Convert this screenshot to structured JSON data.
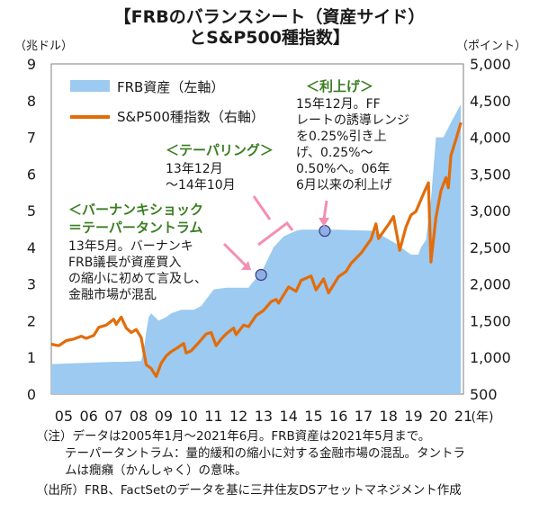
{
  "chart_data": {
    "type": "area+line",
    "title": "【FRBのバランスシート（資産サイド）",
    "subtitle": "とS&P500種指数】",
    "left_axis_unit": "（兆ドル）",
    "right_axis_unit": "（ポイント）",
    "x_axis_unit": "(年)",
    "left_axis_ticks": [
      "0",
      "1",
      "2",
      "3",
      "4",
      "5",
      "6",
      "7",
      "8",
      "9"
    ],
    "right_axis_ticks": [
      "500",
      "1,000",
      "1,500",
      "2,000",
      "2,500",
      "3,000",
      "3,500",
      "4,000",
      "4,500",
      "5,000"
    ],
    "x_tick_labels": [
      "05",
      "06",
      "07",
      "08",
      "09",
      "10",
      "11",
      "12",
      "13",
      "14",
      "15",
      "16",
      "17",
      "18",
      "19",
      "20",
      "21"
    ],
    "ylim_left": [
      0,
      9
    ],
    "ylim_right": [
      500,
      5000
    ],
    "x_range": [
      2005.0,
      2021.5
    ],
    "legend_placement": "top-left",
    "colors": {
      "frb_area": "#9ccaf0",
      "sp500_line": "#e36c0a",
      "annotation_green": "#3a7d22",
      "marker_pink": "#f48fb1"
    },
    "series": [
      {
        "name": "FRB資産（左軸）",
        "axis": "left",
        "kind": "area",
        "points": [
          [
            2005.0,
            0.82
          ],
          [
            2007.5,
            0.88
          ],
          [
            2007.9,
            0.88
          ],
          [
            2008.6,
            0.9
          ],
          [
            2008.7,
            1.2
          ],
          [
            2008.8,
            1.7
          ],
          [
            2008.9,
            2.1
          ],
          [
            2009.0,
            2.2
          ],
          [
            2009.3,
            2.0
          ],
          [
            2009.6,
            2.1
          ],
          [
            2009.8,
            2.2
          ],
          [
            2010.2,
            2.3
          ],
          [
            2010.7,
            2.3
          ],
          [
            2011.0,
            2.4
          ],
          [
            2011.5,
            2.85
          ],
          [
            2012.0,
            2.9
          ],
          [
            2012.9,
            2.9
          ],
          [
            2013.0,
            3.0
          ],
          [
            2013.4,
            3.3
          ],
          [
            2013.9,
            4.0
          ],
          [
            2014.3,
            4.3
          ],
          [
            2014.8,
            4.45
          ],
          [
            2015.0,
            4.48
          ],
          [
            2016.5,
            4.48
          ],
          [
            2017.9,
            4.45
          ],
          [
            2018.3,
            4.3
          ],
          [
            2018.8,
            4.1
          ],
          [
            2019.4,
            3.8
          ],
          [
            2019.7,
            3.8
          ],
          [
            2019.8,
            4.0
          ],
          [
            2020.0,
            4.2
          ],
          [
            2020.2,
            5.3
          ],
          [
            2020.4,
            7.0
          ],
          [
            2020.7,
            7.0
          ],
          [
            2021.0,
            7.4
          ],
          [
            2021.4,
            7.9
          ]
        ]
      },
      {
        "name": "S&P500種指数（右軸）",
        "axis": "right",
        "kind": "line",
        "points": [
          [
            2005.0,
            1180
          ],
          [
            2005.3,
            1160
          ],
          [
            2005.6,
            1230
          ],
          [
            2005.9,
            1250
          ],
          [
            2006.2,
            1290
          ],
          [
            2006.4,
            1260
          ],
          [
            2006.7,
            1300
          ],
          [
            2006.9,
            1410
          ],
          [
            2007.2,
            1440
          ],
          [
            2007.5,
            1520
          ],
          [
            2007.6,
            1450
          ],
          [
            2007.8,
            1550
          ],
          [
            2008.0,
            1400
          ],
          [
            2008.2,
            1340
          ],
          [
            2008.4,
            1380
          ],
          [
            2008.6,
            1270
          ],
          [
            2008.8,
            900
          ],
          [
            2009.0,
            850
          ],
          [
            2009.2,
            740
          ],
          [
            2009.4,
            920
          ],
          [
            2009.6,
            1020
          ],
          [
            2009.8,
            1080
          ],
          [
            2010.0,
            1120
          ],
          [
            2010.3,
            1190
          ],
          [
            2010.4,
            1060
          ],
          [
            2010.6,
            1090
          ],
          [
            2010.9,
            1200
          ],
          [
            2011.2,
            1320
          ],
          [
            2011.4,
            1340
          ],
          [
            2011.6,
            1160
          ],
          [
            2011.8,
            1250
          ],
          [
            2012.0,
            1320
          ],
          [
            2012.3,
            1400
          ],
          [
            2012.4,
            1310
          ],
          [
            2012.7,
            1440
          ],
          [
            2012.9,
            1420
          ],
          [
            2013.2,
            1570
          ],
          [
            2013.5,
            1640
          ],
          [
            2013.8,
            1760
          ],
          [
            2014.0,
            1790
          ],
          [
            2014.1,
            1740
          ],
          [
            2014.5,
            1960
          ],
          [
            2014.8,
            1900
          ],
          [
            2015.0,
            2050
          ],
          [
            2015.4,
            2110
          ],
          [
            2015.6,
            1920
          ],
          [
            2015.9,
            2070
          ],
          [
            2016.1,
            1880
          ],
          [
            2016.5,
            2100
          ],
          [
            2016.8,
            2170
          ],
          [
            2017.0,
            2280
          ],
          [
            2017.4,
            2420
          ],
          [
            2017.8,
            2610
          ],
          [
            2018.0,
            2820
          ],
          [
            2018.1,
            2620
          ],
          [
            2018.5,
            2810
          ],
          [
            2018.7,
            2920
          ],
          [
            2018.95,
            2460
          ],
          [
            2019.2,
            2780
          ],
          [
            2019.4,
            2940
          ],
          [
            2019.6,
            2990
          ],
          [
            2019.9,
            3230
          ],
          [
            2020.1,
            3380
          ],
          [
            2020.2,
            2300
          ],
          [
            2020.4,
            2910
          ],
          [
            2020.6,
            3270
          ],
          [
            2020.8,
            3450
          ],
          [
            2020.9,
            3310
          ],
          [
            2021.0,
            3750
          ],
          [
            2021.2,
            3970
          ],
          [
            2021.4,
            4200
          ]
        ]
      }
    ],
    "annotations": [
      {
        "header": "＜バーナンキショック",
        "header2": "＝テーパータントラム",
        "lines": [
          "13年5月。バーナンキ",
          "FRB議長が資産買入",
          "の縮小に初めて言及し、",
          "金融市場が混乱"
        ]
      },
      {
        "header": "＜テーパリング＞",
        "lines": [
          "13年12月",
          "～14年10月"
        ]
      },
      {
        "header": "＜利上げ＞",
        "lines": [
          "15年12月。FF",
          "レートの誘導レンジ",
          "を0.25%引き上",
          "げ、0.25%～",
          "0.50%へ。06年",
          "6月以来の利上げ"
        ]
      }
    ],
    "markers": [
      {
        "x": 2013.4,
        "y_left": 3.25
      },
      {
        "x": 2015.95,
        "y_left": 4.45
      }
    ]
  },
  "notes": [
    "（注）データは2005年1月～2021年6月。FRB資産は2021年5月まで。",
    "テーパータントラム：量的緩和の縮小に対する金融市場の混乱。タントラ",
    "ムは癇癪（かんしゃく）の意味。",
    "（出所）FRB、FactSetのデータを基に三井住友DSアセットマネジメント作成"
  ]
}
